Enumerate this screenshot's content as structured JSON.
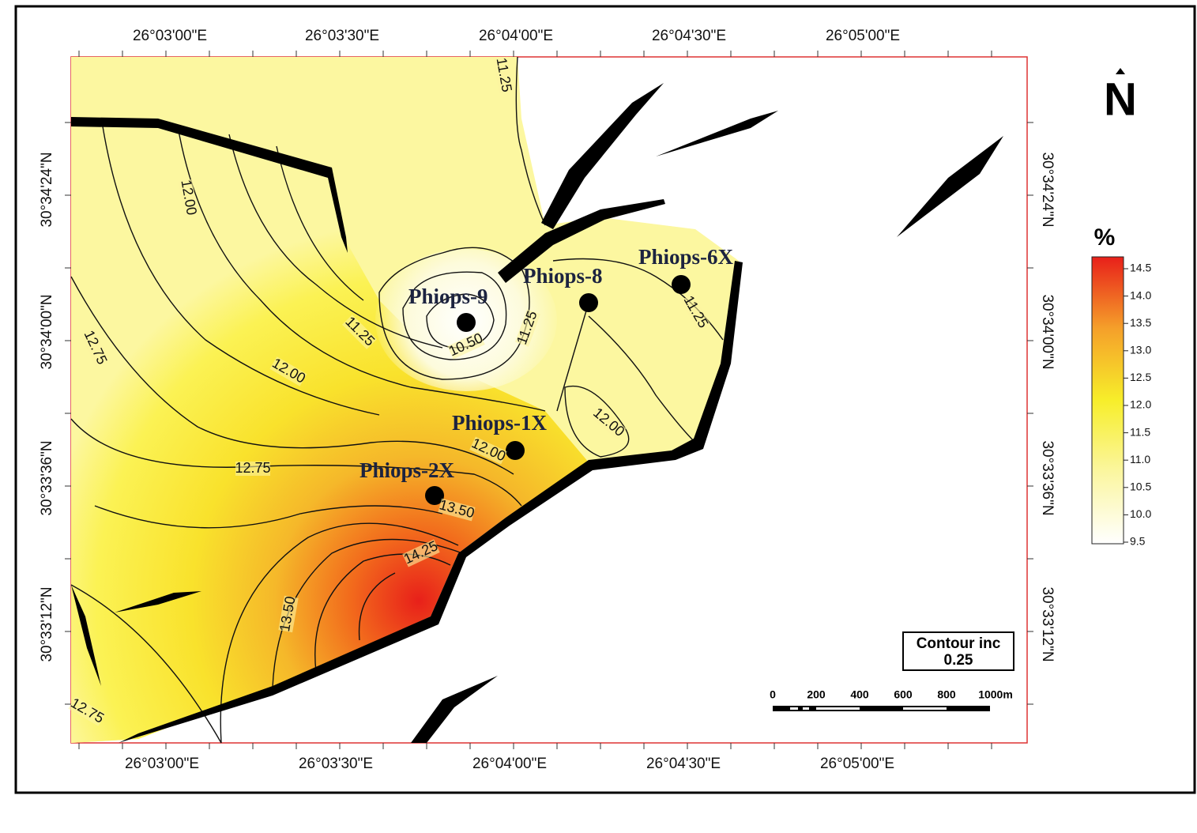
{
  "map": {
    "top_axis": [
      "26°03'00\"E",
      "26°03'30\"E",
      "26°04'00\"E",
      "26°04'30\"E",
      "26°05'00\"E"
    ],
    "bottom_axis": [
      "26°03'00\"E",
      "26°03'30\"E",
      "26°04'00\"E",
      "26°04'30\"E",
      "26°05'00\"E"
    ],
    "left_axis": [
      "30°34'24\"N",
      "30°34'00\"N",
      "30°33'36\"N",
      "30°33'12\"N"
    ],
    "right_axis": [
      "30°34'24\"N",
      "30°34'00\"N",
      "30°33'36\"N",
      "30°33'12\"N"
    ],
    "wells": [
      "Phiops-9",
      "Phiops-8",
      "Phiops-6X",
      "Phiops-1X",
      "Phiops-2X"
    ],
    "contour_labels": [
      "11.25",
      "12.00",
      "12.75",
      "11.25",
      "12.00",
      "10.50",
      "11.25",
      "12.00",
      "12.00",
      "12.75",
      "13.50",
      "14.25",
      "13.50",
      "12.75",
      "11.25"
    ],
    "legend": {
      "title": "%",
      "ticks": [
        "14.5",
        "14.0",
        "13.5",
        "13.0",
        "12.5",
        "12.0",
        "11.5",
        "11.0",
        "10.5",
        "10.0",
        "9.5"
      ]
    },
    "scale_bar": [
      "0",
      "200",
      "400",
      "600",
      "800",
      "1000m"
    ],
    "contour_interval": {
      "label": "Contour inc",
      "value": "0.25"
    },
    "north": "N"
  }
}
